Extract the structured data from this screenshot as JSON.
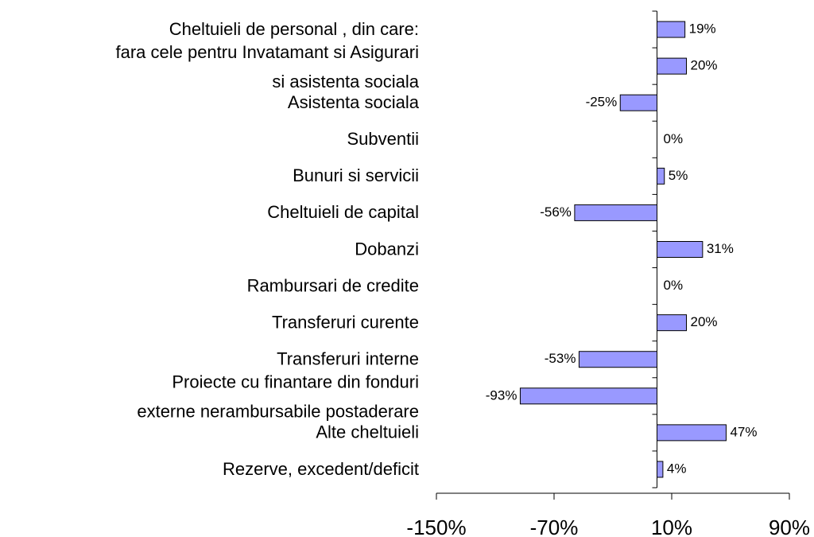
{
  "chart_data": {
    "type": "hbar",
    "categories": [
      "Cheltuieli de personal , din care:",
      [
        "fara cele pentru Invatamant si Asigurari",
        "si asistenta sociala"
      ],
      "Asistenta sociala",
      "Subventii",
      "Bunuri si servicii",
      "Cheltuieli de capital",
      "Dobanzi",
      "Rambursari de credite",
      "Transferuri curente",
      "Transferuri interne",
      [
        "Proiecte cu finantare din fonduri",
        "externe nerambursabile postaderare"
      ],
      "Alte cheltuieli",
      "Rezerve, excedent/deficit"
    ],
    "values": [
      19,
      20,
      -25,
      0,
      5,
      -56,
      31,
      0,
      20,
      -53,
      -93,
      47,
      4
    ],
    "value_labels": [
      "19%",
      "20%",
      "-25%",
      "0%",
      "5%",
      "-56%",
      "31%",
      "0%",
      "20%",
      "-53%",
      "-93%",
      "47%",
      "4%"
    ],
    "color": "#9999ff",
    "xlim": [
      -150,
      90
    ],
    "xticks": [
      {
        "value": -150,
        "label": "-150%"
      },
      {
        "value": -70,
        "label": "-70%"
      },
      {
        "value": 10,
        "label": "10%"
      },
      {
        "value": 90,
        "label": "90%"
      }
    ]
  }
}
